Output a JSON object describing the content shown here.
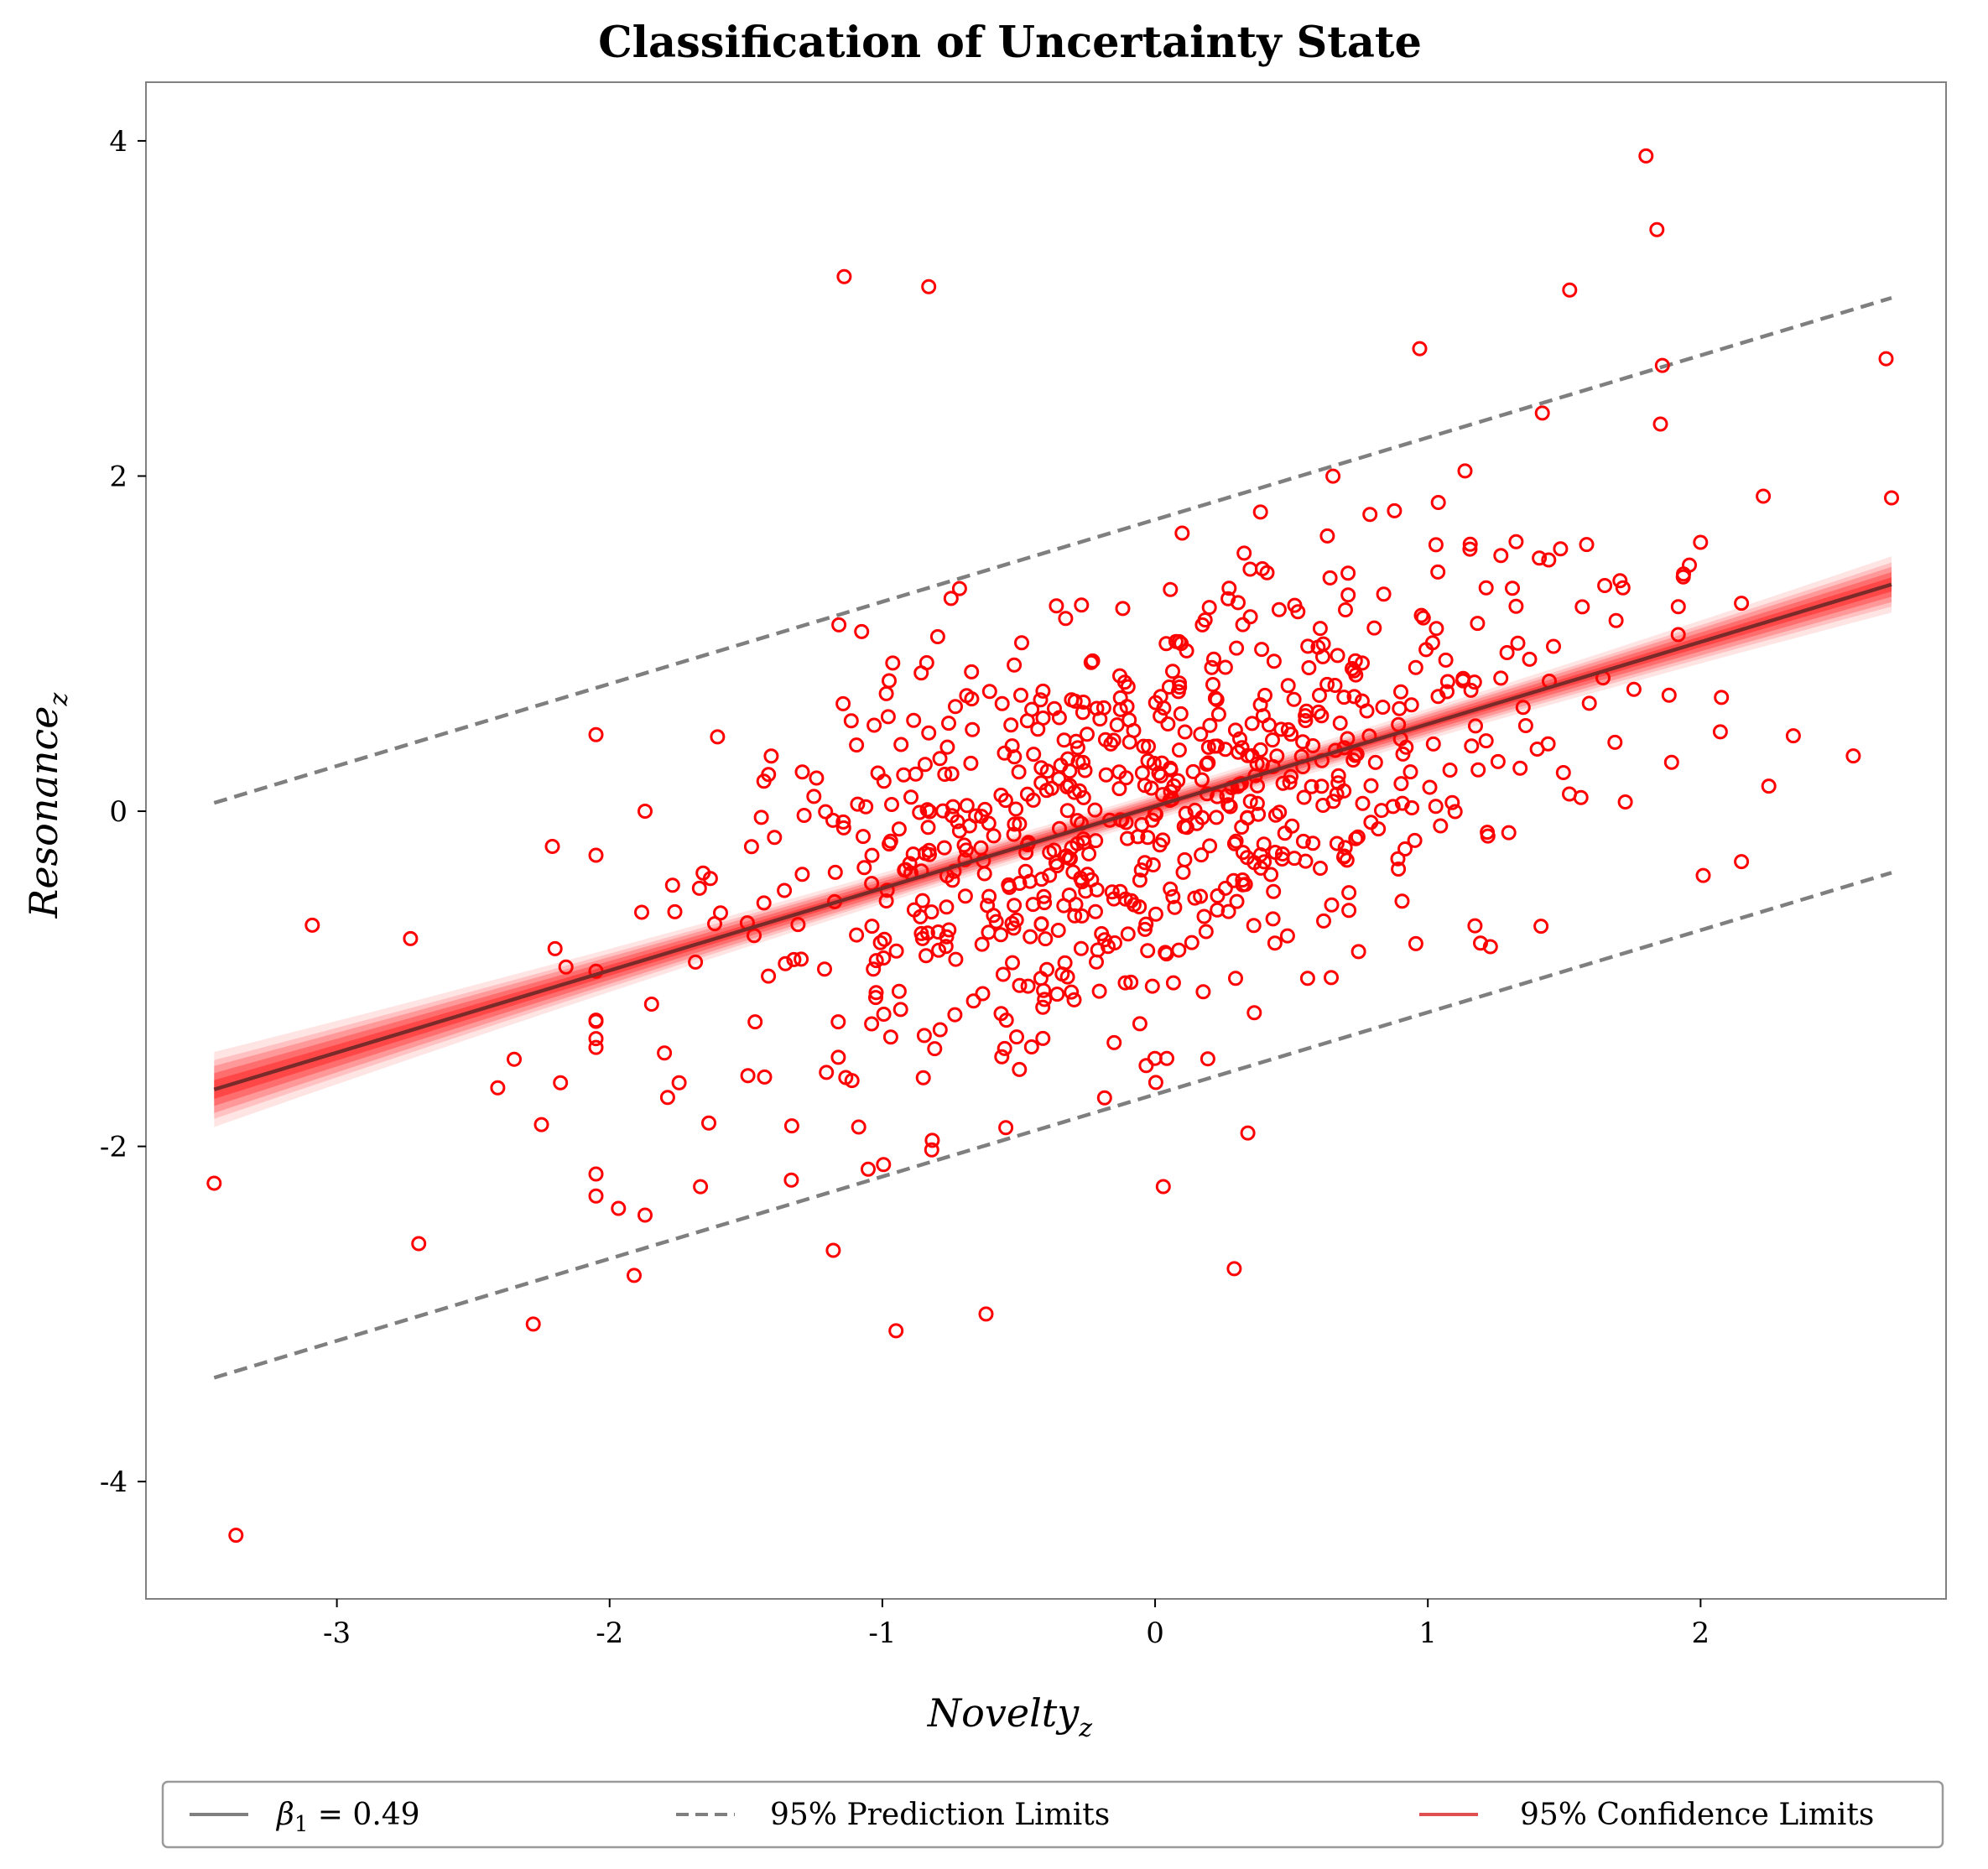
{
  "chart_data": {
    "type": "scatter",
    "title": "Classification of Uncertainty State",
    "xlabel": "Novelty",
    "xlabel_subscript": "z",
    "ylabel": "Resonance",
    "ylabel_subscript": "z",
    "xlim": [
      -3.7,
      2.9
    ],
    "ylim": [
      -4.7,
      4.35
    ],
    "xticks": [
      -3,
      -2,
      -1,
      0,
      1,
      2
    ],
    "yticks": [
      -4,
      -2,
      0,
      2,
      4
    ],
    "xtick_labels": [
      "-3",
      "-2",
      "-1",
      "0",
      "1",
      "2"
    ],
    "ytick_labels": [
      "-4",
      "-2",
      "0",
      "2",
      "4"
    ],
    "grid": false,
    "legend_position": "bottom",
    "regression": {
      "intercept": 0.03,
      "slope": 0.49,
      "x_range": [
        -3.45,
        2.7
      ],
      "line_color": "#7b2a2a",
      "band_color": "#ff2020",
      "confidence_halfwidth_at_mean": 0.05,
      "confidence_halfwidth_at_ends": 0.14
    },
    "prediction_limits": {
      "lower_intercept": -1.69,
      "upper_intercept": 1.74,
      "slope": 0.49,
      "x_range": [
        -3.45,
        2.7
      ],
      "color": "#7f7f7f"
    },
    "series": [
      {
        "name": "observations",
        "color": "#ff0000",
        "outliers_x": [
          -3.45,
          -3.37,
          -3.09,
          -2.73,
          -2.7,
          -2.41,
          -2.35,
          -2.28,
          -2.25,
          -2.21,
          -2.2,
          -2.18,
          -2.16,
          -1.91,
          -1.87,
          -1.87,
          -1.14,
          -0.83,
          -1.18,
          -0.95,
          -0.62,
          0.03,
          0.29,
          0.34,
          0.97,
          1.52,
          1.8,
          1.84,
          1.86,
          2.23,
          2.25,
          2.34,
          2.56,
          2.68,
          2.7
        ],
        "outliers_y": [
          -2.22,
          -4.32,
          -0.68,
          -0.76,
          -2.58,
          -1.65,
          -1.48,
          -3.06,
          -1.87,
          -0.21,
          -0.82,
          -1.62,
          -0.93,
          -2.77,
          -2.41,
          0.0,
          3.19,
          3.13,
          -2.62,
          -3.1,
          -3.0,
          -2.24,
          -2.73,
          -1.92,
          2.76,
          3.11,
          3.91,
          3.47,
          2.66,
          1.88,
          0.15,
          0.45,
          0.33,
          2.7,
          1.87
        ],
        "core_count": 760,
        "core_seed": 7,
        "core_x_mean": 0.0,
        "core_x_sd": 0.85,
        "core_residual_sd": 0.68
      }
    ],
    "legend": [
      {
        "label": "β",
        "sub": "1",
        "suffix": " = 0.49",
        "style": "solid",
        "color": "#7f7f7f"
      },
      {
        "label": "95% Prediction Limits",
        "style": "dashed",
        "color": "#7f7f7f"
      },
      {
        "label": "95% Confidence Limits",
        "style": "solid",
        "color": "#e05050"
      }
    ]
  }
}
